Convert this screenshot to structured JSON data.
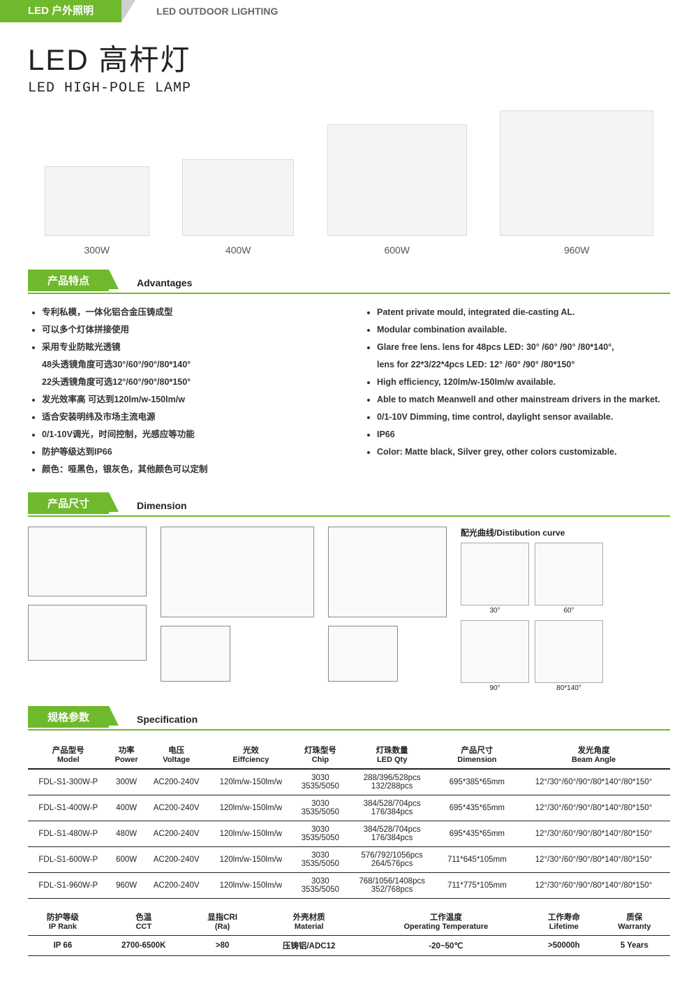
{
  "header": {
    "cn": "LED 户外照明",
    "en": "LED OUTDOOR LIGHTING"
  },
  "title": {
    "cn": "LED 高杆灯",
    "en": "LED HIGH-POLE LAMP"
  },
  "products": [
    {
      "label": "300W",
      "class": "p-300"
    },
    {
      "label": "400W",
      "class": "p-400"
    },
    {
      "label": "600W",
      "class": "p-600"
    },
    {
      "label": "960W",
      "class": "p-960"
    }
  ],
  "sections": {
    "advantages": {
      "cn": "产品特点",
      "en": "Advantages"
    },
    "dimension": {
      "cn": "产品尺寸",
      "en": "Dimension"
    },
    "specification": {
      "cn": "规格参数",
      "en": "Specification"
    }
  },
  "advantages_cn": [
    "专利私模，一体化铝合金压铸成型",
    "可以多个灯体拼接使用",
    "采用专业防眩光透镜",
    "48头透镜角度可选30°/60°/90°/80*140°",
    "22头透镜角度可选12°/60°/90°/80*150°",
    "发光效率高 可达到120lm/w-150lm/w",
    "适合安装明纬及市场主流电源",
    "0/1-10V调光，时间控制，光感应等功能",
    "防护等级达到IP66",
    "颜色：哑黑色，银灰色，其他颜色可以定制"
  ],
  "advantages_en": [
    "Patent private mould, integrated die-casting AL.",
    "Modular combination available.",
    "Glare free lens. lens for 48pcs LED: 30° /60° /90° /80*140°,",
    "lens for 22*3/22*4pcs LED: 12° /60° /90° /80*150°",
    "High efficiency, 120lm/w-150lm/w available.",
    "Able to match Meanwell and other mainstream drivers in the market.",
    "0/1-10V Dimming, time control, daylight sensor available.",
    "IP66",
    "Color: Matte black, Silver grey, other colors customizable."
  ],
  "curve_title": "配光曲线/Distibution curve",
  "curves": [
    "30°",
    "60°",
    "90°",
    "80*140°"
  ],
  "spec_headers": [
    {
      "cn": "产品型号",
      "en": "Model"
    },
    {
      "cn": "功率",
      "en": "Power"
    },
    {
      "cn": "电压",
      "en": "Voltage"
    },
    {
      "cn": "光效",
      "en": "Eiffciency"
    },
    {
      "cn": "灯珠型号",
      "en": "Chip"
    },
    {
      "cn": "灯珠数量",
      "en": "LED Qty"
    },
    {
      "cn": "产品尺寸",
      "en": "Dimension"
    },
    {
      "cn": "发光角度",
      "en": "Beam Angle"
    }
  ],
  "spec_rows": [
    {
      "model": "FDL-S1-300W-P",
      "power": "300W",
      "voltage": "AC200-240V",
      "eff": "120lm/w-150lm/w",
      "chip": "3030\n3535/5050",
      "qty": "288/396/528pcs\n132/288pcs",
      "dim": "695*385*65mm",
      "angle": "12°/30°/60°/90°/80*140°/80*150°"
    },
    {
      "model": "FDL-S1-400W-P",
      "power": "400W",
      "voltage": "AC200-240V",
      "eff": "120lm/w-150lm/w",
      "chip": "3030\n3535/5050",
      "qty": "384/528/704pcs\n176/384pcs",
      "dim": "695*435*65mm",
      "angle": "12°/30°/60°/90°/80*140°/80*150°"
    },
    {
      "model": "FDL-S1-480W-P",
      "power": "480W",
      "voltage": "AC200-240V",
      "eff": "120lm/w-150lm/w",
      "chip": "3030\n3535/5050",
      "qty": "384/528/704pcs\n176/384pcs",
      "dim": "695*435*65mm",
      "angle": "12°/30°/60°/90°/80*140°/80*150°"
    },
    {
      "model": "FDL-S1-600W-P",
      "power": "600W",
      "voltage": "AC200-240V",
      "eff": "120lm/w-150lm/w",
      "chip": "3030\n3535/5050",
      "qty": "576/792/1056pcs\n264/576pcs",
      "dim": "711*645*105mm",
      "angle": "12°/30°/60°/90°/80*140°/80*150°"
    },
    {
      "model": "FDL-S1-960W-P",
      "power": "960W",
      "voltage": "AC200-240V",
      "eff": "120lm/w-150lm/w",
      "chip": "3030\n3535/5050",
      "qty": "768/1056/1408pcs\n352/768pcs",
      "dim": "711*775*105mm",
      "angle": "12°/30°/60°/90°/80*140°/80*150°"
    }
  ],
  "spec2_headers": [
    {
      "cn": "防护等级",
      "en": "IP Rank"
    },
    {
      "cn": "色温",
      "en": "CCT"
    },
    {
      "cn": "显指CRI",
      "en": "(Ra)"
    },
    {
      "cn": "外壳材质",
      "en": "Material"
    },
    {
      "cn": "工作温度",
      "en": "Operating Temperature"
    },
    {
      "cn": "工作寿命",
      "en": "Lifetime"
    },
    {
      "cn": "质保",
      "en": "Warranty"
    }
  ],
  "spec2_row": {
    "ip": "IP 66",
    "cct": "2700-6500K",
    "cri": ">80",
    "material": "压铸铝/ADC12",
    "temp": "-20~50℃",
    "life": ">50000h",
    "warranty": "5 Years"
  }
}
